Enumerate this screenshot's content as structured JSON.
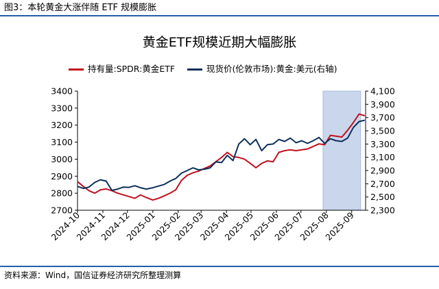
{
  "figure_label": "图3：本轮黄金大涨伴随 ETF 规模膨胀",
  "source_note": "资料来源：Wind，国信证券经济研究所整理测算",
  "colors": {
    "rule": "#1f5fa8",
    "series_etf": "#c0101c",
    "series_gold": "#0b2f5a",
    "highlight": "#c9d6ec"
  },
  "chart_data": {
    "type": "line",
    "title": "黄金ETF规模近期大幅膨胀",
    "legend_position": "top",
    "grid": false,
    "x_ticks": [
      "2024-10",
      "2024-11",
      "2024-12",
      "2025-01",
      "2025-02",
      "2025-03",
      "2025-04",
      "2025-05",
      "2025-06",
      "2025-07",
      "2025-08",
      "2025-09"
    ],
    "y_left": {
      "min": 2700,
      "max": 3400,
      "ticks": [
        2700,
        2800,
        2900,
        3000,
        3100,
        3200,
        3300,
        3400
      ]
    },
    "y_right": {
      "min": 2300,
      "max": 4100,
      "ticks": [
        "2,300",
        "2,500",
        "2,700",
        "2,900",
        "3,100",
        "3,300",
        "3,500",
        "3,700",
        "3,900",
        "4,100"
      ]
    },
    "highlight_range": [
      "2025-07-28",
      "2025-09-12"
    ],
    "series": [
      {
        "name": "持有量:SPDR:黄金ETF",
        "axis": "left",
        "points": [
          [
            "2024-10-01",
            2868
          ],
          [
            "2024-10-08",
            2840
          ],
          [
            "2024-10-15",
            2815
          ],
          [
            "2024-10-22",
            2800
          ],
          [
            "2024-10-29",
            2820
          ],
          [
            "2024-11-05",
            2825
          ],
          [
            "2024-11-12",
            2815
          ],
          [
            "2024-11-19",
            2800
          ],
          [
            "2024-11-26",
            2790
          ],
          [
            "2024-12-03",
            2780
          ],
          [
            "2024-12-10",
            2770
          ],
          [
            "2024-12-17",
            2790
          ],
          [
            "2024-12-24",
            2775
          ],
          [
            "2025-01-01",
            2760
          ],
          [
            "2025-01-08",
            2770
          ],
          [
            "2025-01-15",
            2785
          ],
          [
            "2025-01-22",
            2800
          ],
          [
            "2025-01-29",
            2820
          ],
          [
            "2025-02-05",
            2875
          ],
          [
            "2025-02-12",
            2905
          ],
          [
            "2025-02-19",
            2920
          ],
          [
            "2025-02-26",
            2930
          ],
          [
            "2025-03-05",
            2945
          ],
          [
            "2025-03-12",
            2960
          ],
          [
            "2025-03-19",
            2985
          ],
          [
            "2025-03-26",
            3010
          ],
          [
            "2025-04-02",
            3040
          ],
          [
            "2025-04-09",
            3015
          ],
          [
            "2025-04-16",
            3010
          ],
          [
            "2025-04-23",
            3000
          ],
          [
            "2025-04-30",
            2975
          ],
          [
            "2025-05-07",
            2950
          ],
          [
            "2025-05-14",
            2975
          ],
          [
            "2025-05-21",
            2990
          ],
          [
            "2025-05-28",
            2985
          ],
          [
            "2025-06-04",
            3040
          ],
          [
            "2025-06-11",
            3050
          ],
          [
            "2025-06-18",
            3055
          ],
          [
            "2025-06-25",
            3050
          ],
          [
            "2025-07-02",
            3055
          ],
          [
            "2025-07-09",
            3060
          ],
          [
            "2025-07-16",
            3075
          ],
          [
            "2025-07-23",
            3090
          ],
          [
            "2025-07-30",
            3085
          ],
          [
            "2025-08-06",
            3140
          ],
          [
            "2025-08-13",
            3135
          ],
          [
            "2025-08-20",
            3130
          ],
          [
            "2025-08-27",
            3170
          ],
          [
            "2025-09-03",
            3215
          ],
          [
            "2025-09-10",
            3265
          ],
          [
            "2025-09-17",
            3255
          ]
        ]
      },
      {
        "name": "现货价(伦敦市场):黄金:美元(右轴)",
        "axis": "right",
        "points": [
          [
            "2024-10-01",
            2660
          ],
          [
            "2024-10-08",
            2630
          ],
          [
            "2024-10-15",
            2650
          ],
          [
            "2024-10-22",
            2720
          ],
          [
            "2024-10-29",
            2760
          ],
          [
            "2024-11-05",
            2740
          ],
          [
            "2024-11-12",
            2600
          ],
          [
            "2024-11-19",
            2620
          ],
          [
            "2024-11-26",
            2650
          ],
          [
            "2024-12-03",
            2645
          ],
          [
            "2024-12-10",
            2670
          ],
          [
            "2024-12-17",
            2640
          ],
          [
            "2024-12-24",
            2620
          ],
          [
            "2025-01-01",
            2640
          ],
          [
            "2025-01-08",
            2665
          ],
          [
            "2025-01-15",
            2690
          ],
          [
            "2025-01-22",
            2740
          ],
          [
            "2025-01-29",
            2780
          ],
          [
            "2025-02-05",
            2860
          ],
          [
            "2025-02-12",
            2900
          ],
          [
            "2025-02-19",
            2940
          ],
          [
            "2025-02-26",
            2910
          ],
          [
            "2025-03-05",
            2920
          ],
          [
            "2025-03-12",
            2940
          ],
          [
            "2025-03-19",
            3030
          ],
          [
            "2025-03-26",
            3020
          ],
          [
            "2025-04-02",
            3130
          ],
          [
            "2025-04-09",
            3050
          ],
          [
            "2025-04-16",
            3300
          ],
          [
            "2025-04-23",
            3380
          ],
          [
            "2025-04-30",
            3290
          ],
          [
            "2025-05-07",
            3370
          ],
          [
            "2025-05-14",
            3200
          ],
          [
            "2025-05-21",
            3290
          ],
          [
            "2025-05-28",
            3300
          ],
          [
            "2025-06-04",
            3370
          ],
          [
            "2025-06-11",
            3340
          ],
          [
            "2025-06-18",
            3390
          ],
          [
            "2025-06-25",
            3320
          ],
          [
            "2025-07-02",
            3350
          ],
          [
            "2025-07-09",
            3310
          ],
          [
            "2025-07-16",
            3350
          ],
          [
            "2025-07-23",
            3400
          ],
          [
            "2025-07-30",
            3310
          ],
          [
            "2025-08-06",
            3380
          ],
          [
            "2025-08-13",
            3350
          ],
          [
            "2025-08-20",
            3340
          ],
          [
            "2025-08-27",
            3390
          ],
          [
            "2025-09-03",
            3550
          ],
          [
            "2025-09-10",
            3640
          ],
          [
            "2025-09-17",
            3660
          ]
        ]
      }
    ]
  }
}
